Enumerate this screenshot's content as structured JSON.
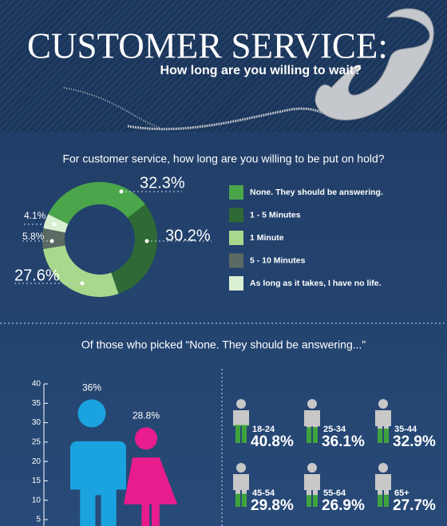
{
  "header": {
    "title": "CUSTOMER SERVICE:",
    "subtitle": "How long are you willing to wait?"
  },
  "chart_data": [
    {
      "type": "donut",
      "title": "For customer service, how long are you willing to be put on hold?",
      "categories": [
        "None. They should be answering.",
        "1 - 5 Minutes",
        "1 Minute",
        "5 - 10 Minutes",
        "As long as it takes, I have no life."
      ],
      "values": [
        32.3,
        30.2,
        27.6,
        5.8,
        4.1
      ],
      "value_labels": [
        "32.3%",
        "30.2%",
        "27.6%",
        "5.8%",
        "4.1%"
      ],
      "colors": [
        "#4ba54a",
        "#2f6a36",
        "#a9d88c",
        "#5b6a62",
        "#d9f0d2"
      ]
    },
    {
      "type": "figure-bar",
      "title": "Of those who picked “None. They should be answering...”",
      "categories": [
        null,
        null
      ],
      "values": [
        36,
        28.8
      ],
      "value_labels": [
        "36%",
        "28.8%"
      ],
      "colors": [
        "#1aa3de",
        "#e81c8c"
      ],
      "ylim": [
        0,
        40
      ],
      "yticks": [
        5,
        10,
        15,
        20,
        25,
        30,
        35,
        40
      ]
    },
    {
      "type": "figure-fill",
      "categories": [
        "18-24",
        "25-34",
        "35-44",
        "45-54",
        "55-64",
        "65+"
      ],
      "values": [
        40.8,
        36.1,
        32.9,
        29.8,
        26.9,
        27.7
      ],
      "value_labels": [
        "40.8%",
        "36.1%",
        "32.9%",
        "29.8%",
        "26.9%",
        "27.7%"
      ],
      "color": "#3fa33d",
      "base_color": "#c8c8c8"
    }
  ]
}
